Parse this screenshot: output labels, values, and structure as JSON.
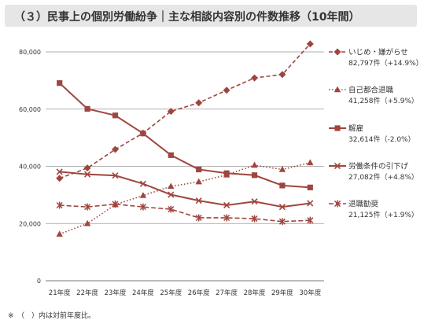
{
  "title": "（３）民事上の個別労働紛争｜主な相談内容別の件数推移（10年間）",
  "footnote": "※　（　）内は対前年度比。",
  "chart_data": {
    "type": "line",
    "categories": [
      "21年度",
      "22年度",
      "23年度",
      "24年度",
      "25年度",
      "26年度",
      "27年度",
      "28年度",
      "29年度",
      "30年度"
    ],
    "ylim": [
      0,
      80000
    ],
    "yticks": [
      0,
      20000,
      40000,
      60000,
      80000
    ],
    "ytick_labels": [
      "0",
      "20,000",
      "40,000",
      "60,000",
      "80,000"
    ],
    "grid": true,
    "legend_position": "right",
    "series": [
      {
        "name": "いじめ・嫌がらせ",
        "value_label": "82,797件（+14.9%）",
        "color": "#a0453e",
        "dash": "5,3",
        "marker": "diamond",
        "values": [
          35800,
          39400,
          45900,
          51600,
          59200,
          62200,
          66600,
          70900,
          72100,
          82797
        ]
      },
      {
        "name": "自己都合退職",
        "value_label": "41,258件（+5.9%）",
        "color": "#a0453e",
        "dash": "1.5,2.5",
        "marker": "triangle",
        "values": [
          16300,
          20000,
          26600,
          29800,
          33000,
          34600,
          37000,
          40400,
          38900,
          41258
        ]
      },
      {
        "name": "解雇",
        "value_label": "32,614件（-2.0%）",
        "color": "#a0453e",
        "dash": "",
        "marker": "square",
        "values": [
          69100,
          60100,
          57800,
          51500,
          43900,
          38900,
          37600,
          36900,
          33300,
          32614
        ]
      },
      {
        "name": "労働条件の引下げ",
        "value_label": "27,082件（+4.8%）",
        "color": "#a0453e",
        "dash": "",
        "marker": "x",
        "values": [
          38100,
          37200,
          36800,
          33900,
          30100,
          28000,
          26400,
          27700,
          25800,
          27082
        ]
      },
      {
        "name": "退職勧奨",
        "value_label": "21,125件（+1.9%）",
        "color": "#a0453e",
        "dash": "6,3",
        "marker": "asterisk",
        "values": [
          26400,
          25800,
          26800,
          25800,
          25000,
          22000,
          22000,
          21700,
          20700,
          21125
        ]
      }
    ]
  }
}
